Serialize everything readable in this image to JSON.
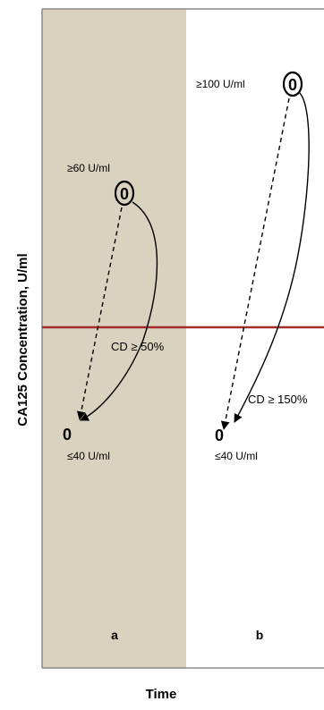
{
  "axes": {
    "y_label": "CA125 Concentration, U/ml",
    "x_label": "Time"
  },
  "panels": [
    {
      "id": "a",
      "label": "a",
      "background": "#d8d2bf",
      "start": {
        "marker": "0",
        "value_label": "≥60 U/ml"
      },
      "end": {
        "marker": "0",
        "value_label": "≤40 U/ml"
      },
      "curve_label": "CD ≥ 50%"
    },
    {
      "id": "b",
      "label": "b",
      "background": "#ffffff",
      "start": {
        "marker": "0",
        "value_label": "≥100 U/ml"
      },
      "end": {
        "marker": "0",
        "value_label": "≤40 U/ml"
      },
      "curve_label": "CD ≥ 150%"
    }
  ],
  "threshold_line": {
    "color": "#a52a2a"
  },
  "colors": {
    "frame": "#8a8a8a",
    "arrow": "#000000"
  }
}
